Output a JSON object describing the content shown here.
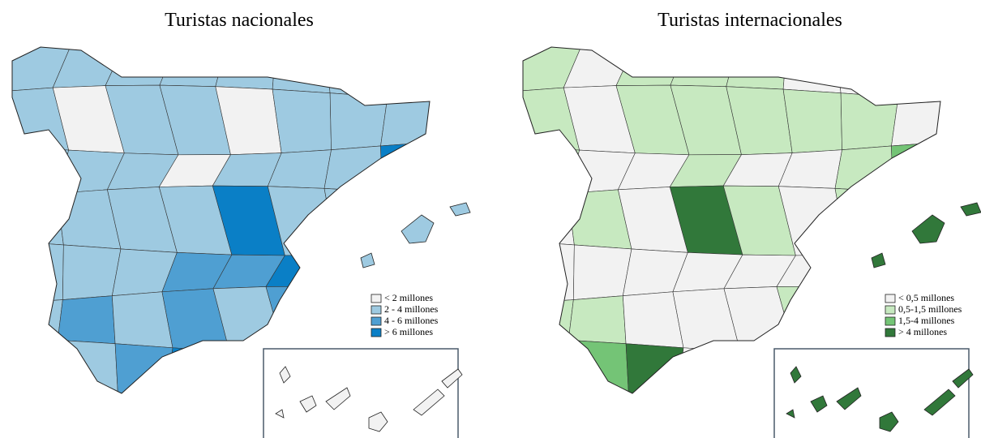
{
  "maps": [
    {
      "title": "Turistas nacionales",
      "legend": [
        {
          "label": "< 2 millones",
          "color": "#f2f2f2"
        },
        {
          "label": "2 - 4 millones",
          "color": "#9ecae1"
        },
        {
          "label": "4 - 6 millones",
          "color": "#4f9fd2"
        },
        {
          "label": "> 6 millones",
          "color": "#0a7fc6"
        }
      ]
    },
    {
      "title": "Turistas internacionales",
      "legend": [
        {
          "label": "< 0,5 millones",
          "color": "#f2f2f2"
        },
        {
          "label": "0,5-1,5 millones",
          "color": "#c7e9c0"
        },
        {
          "label": "1,5-4 millones",
          "color": "#74c476"
        },
        {
          "label": "> 4 millones",
          "color": "#31783a"
        }
      ]
    }
  ]
}
